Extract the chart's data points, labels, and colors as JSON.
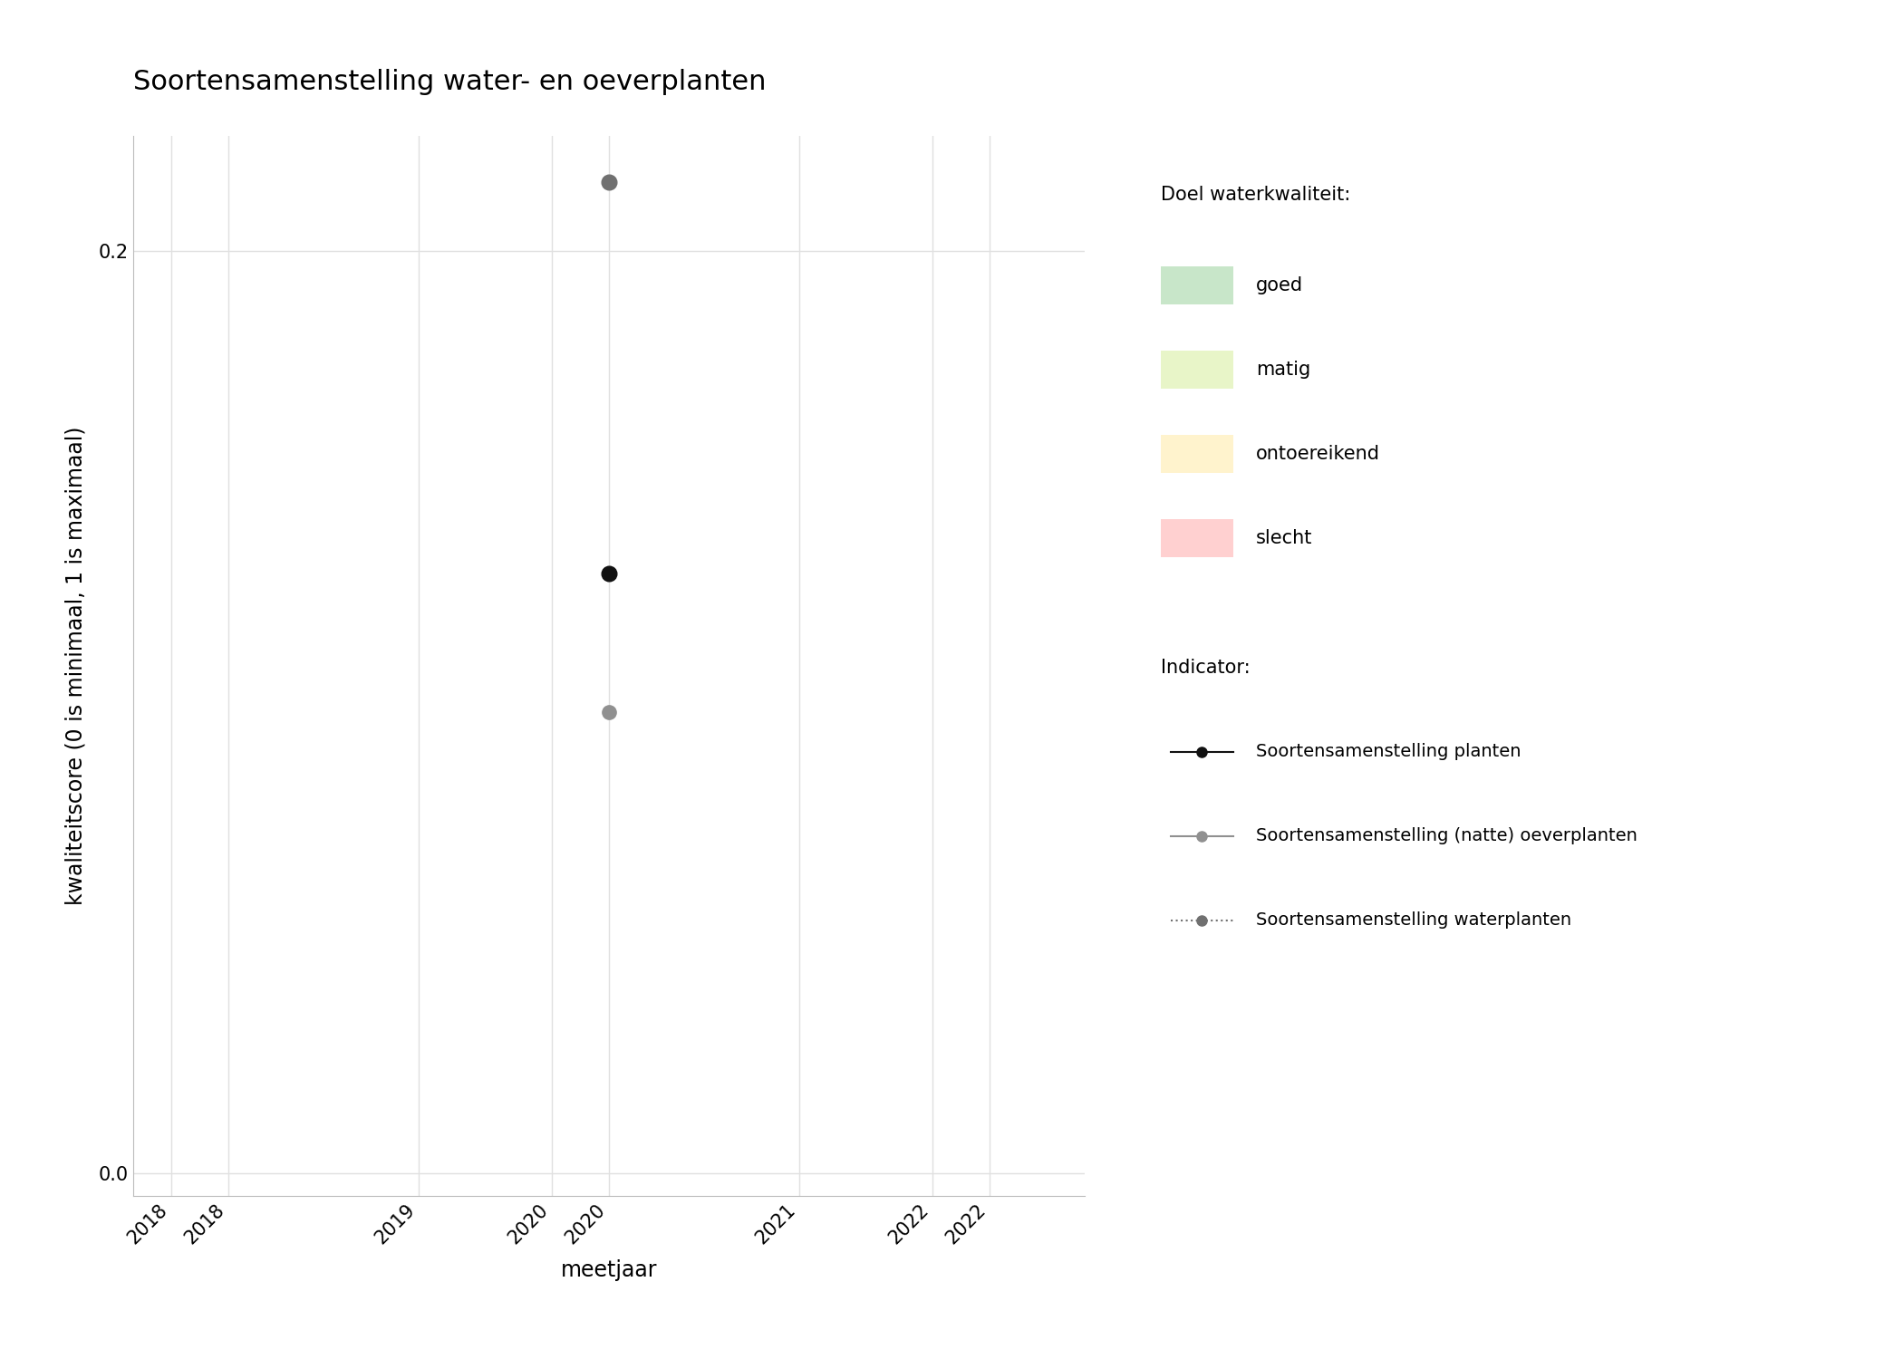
{
  "title": "Soortensamenstelling water- en oeverplanten",
  "xlabel": "meetjaar",
  "ylabel": "kwaliteitscore (0 is minimaal, 1 is maximaal)",
  "xlim": [
    2017.5,
    2022.5
  ],
  "ylim": [
    -0.005,
    0.225
  ],
  "yticks": [
    0.0,
    0.2
  ],
  "background_color": "#ffffff",
  "grid_color": "#e0e0e0",
  "series": [
    {
      "name": "Soortensamenstelling planten",
      "color": "#111111",
      "x": [
        2020.0
      ],
      "y": [
        0.13
      ],
      "marker": "o",
      "markersize": 12,
      "linestyle": "none",
      "legend_linestyle": "-"
    },
    {
      "name": "Soortensamenstelling (natte) oeverplanten",
      "color": "#909090",
      "x": [
        2020.0
      ],
      "y": [
        0.1
      ],
      "marker": "o",
      "markersize": 11,
      "linestyle": "none",
      "legend_linestyle": "-"
    },
    {
      "name": "Soortensamenstelling waterplanten",
      "color": "#707070",
      "x": [
        2020.0
      ],
      "y": [
        0.215
      ],
      "marker": "o",
      "markersize": 12,
      "linestyle": "none",
      "legend_linestyle": ":"
    }
  ],
  "legend_title_doel": "Doel waterkwaliteit:",
  "legend_quality_labels": [
    "goed",
    "matig",
    "ontoereikend",
    "slecht"
  ],
  "legend_quality_colors": [
    "#c8e6c9",
    "#e8f5c8",
    "#fff3cd",
    "#ffd0d0"
  ],
  "legend_title_indicator": "Indicator:",
  "title_fontsize": 22,
  "axis_label_fontsize": 17,
  "tick_fontsize": 15,
  "legend_fontsize": 15
}
